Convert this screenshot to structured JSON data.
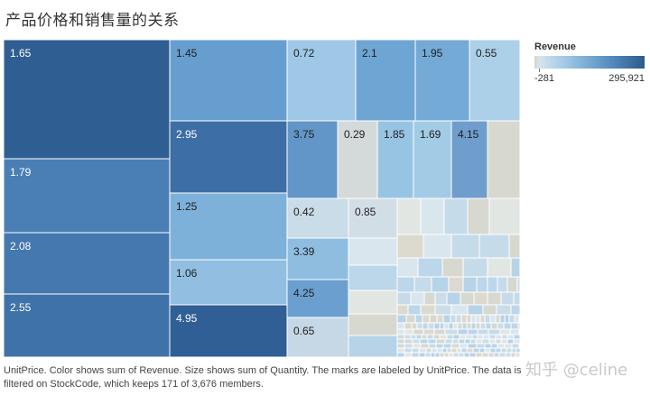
{
  "title": "产品价格和销售量的关系",
  "legend": {
    "title": "Revenue",
    "min_label": "-281",
    "max_label": "295,921",
    "colors": [
      "#d9d4c6",
      "#d6e4ee",
      "#9cc6e3",
      "#5b92c4",
      "#2c5a8c"
    ]
  },
  "caption": "UnitPrice.  Color shows sum of Revenue.  Size shows sum of Quantity.  The marks are labeled by UnitPrice. The data is filtered on StockCode, which keeps 171 of 3,676 members.",
  "watermark": "知乎 @celine",
  "chart_data": {
    "type": "treemap",
    "size_measure": "sum of Quantity",
    "color_measure": "sum of Revenue",
    "label_field": "UnitPrice",
    "filter": "StockCode keeps 171 of 3,676 members",
    "labeled_cells": [
      {
        "label": "1.65",
        "color": "#2f5e92"
      },
      {
        "label": "1.79",
        "color": "#4a7fb5"
      },
      {
        "label": "2.08",
        "color": "#4478af"
      },
      {
        "label": "2.55",
        "color": "#3f72a9"
      },
      {
        "label": "1.45",
        "color": "#669fcf"
      },
      {
        "label": "2.95",
        "color": "#3d6fa6"
      },
      {
        "label": "1.25",
        "color": "#7eb1da"
      },
      {
        "label": "1.06",
        "color": "#92bfe1"
      },
      {
        "label": "4.95",
        "color": "#2f5f94"
      },
      {
        "label": "0.72",
        "color": "#9ec8e5"
      },
      {
        "label": "2.1",
        "color": "#6da5d3"
      },
      {
        "label": "1.95",
        "color": "#74aad6"
      },
      {
        "label": "0.55",
        "color": "#abd0e8"
      },
      {
        "label": "3.75",
        "color": "#6296c8"
      },
      {
        "label": "0.29",
        "color": "#d3dad9"
      },
      {
        "label": "1.85",
        "color": "#98c4e3"
      },
      {
        "label": "1.69",
        "color": "#a2cbe6"
      },
      {
        "label": "4.15",
        "color": "#6f9ecd"
      },
      {
        "label": "0.42",
        "color": "#c9dce8"
      },
      {
        "label": "0.85",
        "color": "#d2dee6"
      },
      {
        "label": "3.39",
        "color": "#8ebde0"
      },
      {
        "label": "4.25",
        "color": "#6b9fcf"
      },
      {
        "label": "0.65",
        "color": "#c6d8e5"
      }
    ]
  }
}
